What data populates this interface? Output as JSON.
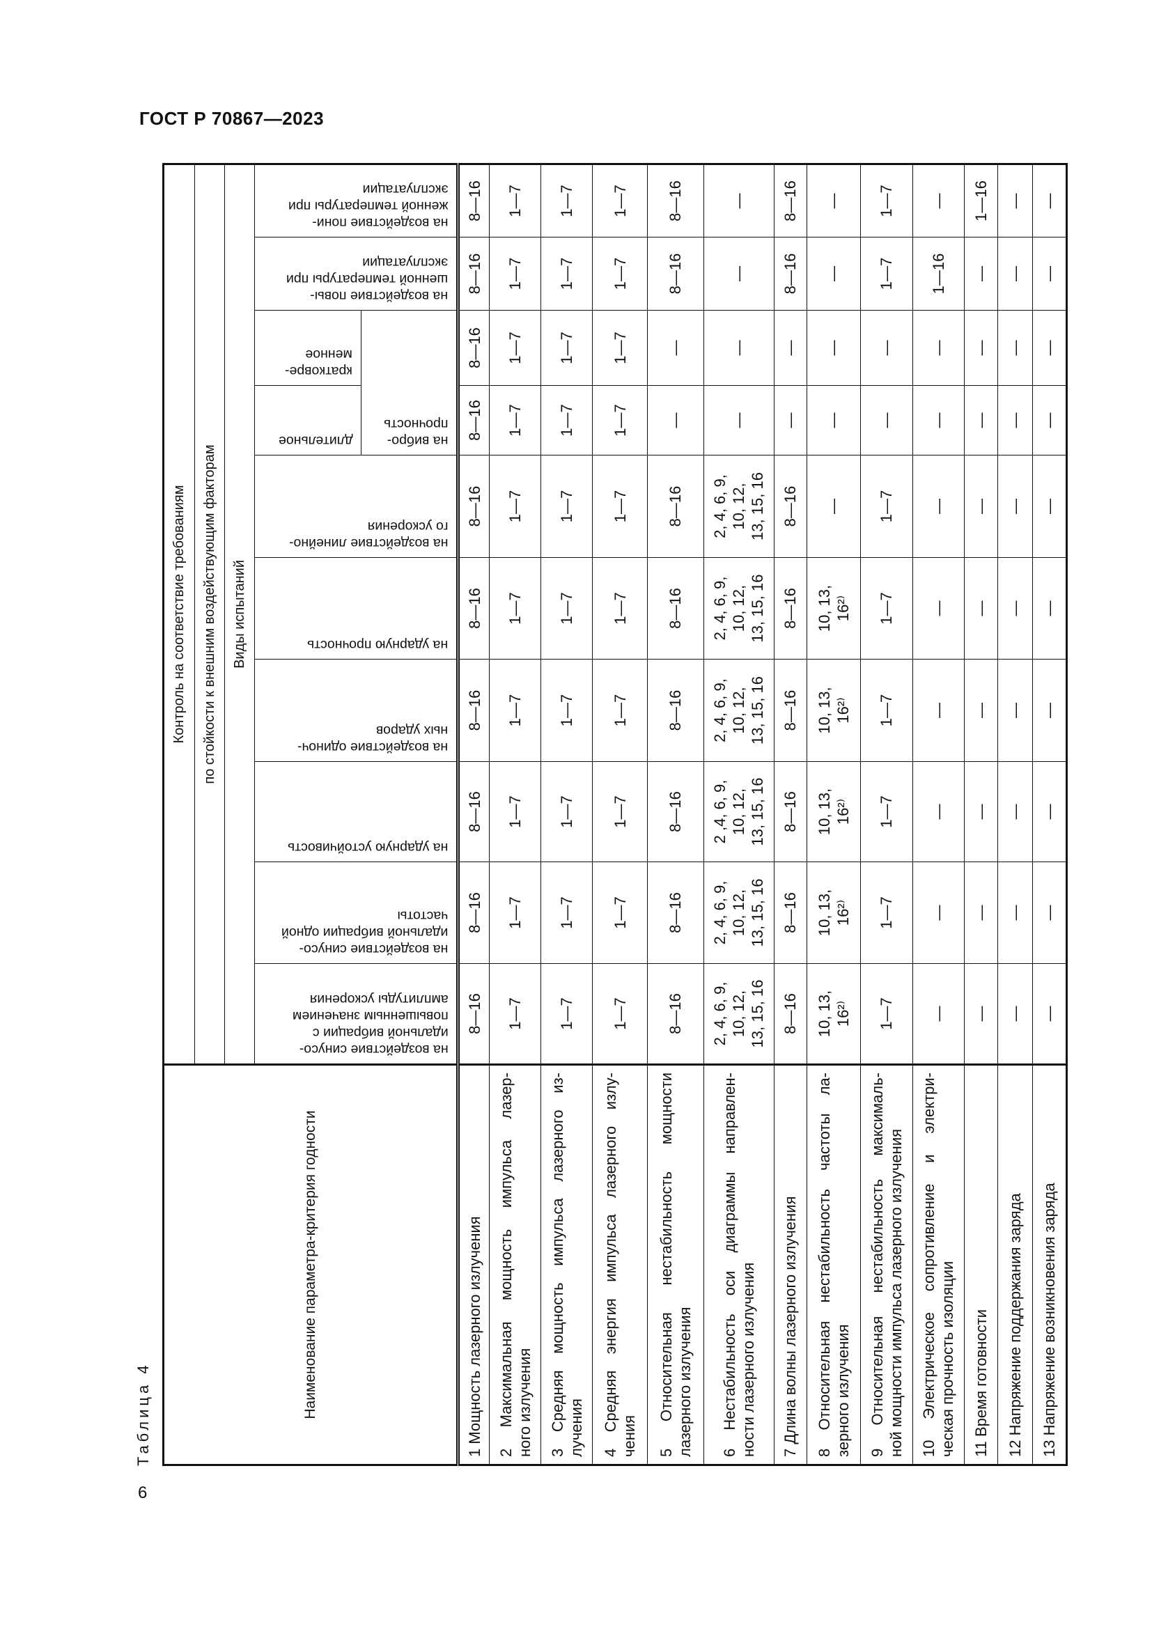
{
  "document": {
    "title": "ГОСТ Р 70867—2023",
    "page_number": "6"
  },
  "table": {
    "caption": "Таблица 4",
    "header": {
      "name_col": "Наименование параметра-критерия годности",
      "control": "Контроль на соответствие требованиям",
      "resistance": "по стойкости к внешним воздействующим факторам",
      "test_types": "Виды испытаний",
      "columns": [
        {
          "lines": [
            "на воздействие синусо-",
            "идальной вибрации с",
            "повышенным значением",
            "амплитуды ускорения"
          ]
        },
        {
          "lines": [
            "на воздействие синусо-",
            "идальной вибрации одной",
            "частоты"
          ]
        },
        {
          "lines": [
            "на ударную устойчивость"
          ]
        },
        {
          "lines": [
            "на воздействие одиноч-",
            "ных ударов"
          ]
        },
        {
          "lines": [
            "на ударную прочность"
          ]
        },
        {
          "lines": [
            "на воздействие линейно-",
            "го ускорения"
          ]
        },
        {
          "lines": [
            "длительное"
          ]
        },
        {
          "lines": [
            "кратковре-",
            "менное"
          ]
        },
        {
          "lines": [
            "на воздействие повы-",
            "шенной температуры при",
            "эксплуатации"
          ]
        },
        {
          "lines": [
            "на воздействие пони-",
            "женной температуры при",
            "эксплуатации"
          ]
        }
      ],
      "vibro": {
        "lines": [
          "на вибро-",
          "прочность"
        ]
      }
    },
    "rows": [
      {
        "name_lines": [
          "1 Мощность лазерного излучения"
        ],
        "values": [
          "8—16",
          "8—16",
          "8—16",
          "8—16",
          "8—16",
          "8—16",
          "8—16",
          "8—16",
          "8—16",
          "8—16"
        ]
      },
      {
        "name_lines": [
          "2 Максимальная мощность импульса лазер-",
          "ного излучения"
        ],
        "values": [
          "1—7",
          "1—7",
          "1—7",
          "1—7",
          "1—7",
          "1—7",
          "1—7",
          "1—7",
          "1—7",
          "1—7"
        ]
      },
      {
        "name_lines": [
          "3 Средняя мощность импульса лазерного из-",
          "лучения"
        ],
        "values": [
          "1—7",
          "1—7",
          "1—7",
          "1—7",
          "1—7",
          "1—7",
          "1—7",
          "1—7",
          "1—7",
          "1—7"
        ]
      },
      {
        "name_lines": [
          "4 Средняя энергия импульса лазерного излу-",
          "чения"
        ],
        "values": [
          "1—7",
          "1—7",
          "1—7",
          "1—7",
          "1—7",
          "1—7",
          "1—7",
          "1—7",
          "1—7",
          "1—7"
        ]
      },
      {
        "name_lines": [
          "5 Относительная нестабильность мощности",
          "лазерного излучения"
        ],
        "values": [
          "8—16",
          "8—16",
          "8—16",
          "8—16",
          "8—16",
          "8—16",
          "—",
          "—",
          "8—16",
          "8—16"
        ]
      },
      {
        "name_lines": [
          "6 Нестабильность оси диаграммы направлен-",
          "ности лазерного излучения"
        ],
        "values": [
          [
            "2, 4, 6, 9,",
            "10, 12,",
            "13, 15, 16"
          ],
          [
            "2, 4, 6, 9,",
            "10, 12,",
            "13, 15, 16"
          ],
          [
            "2 ,4, 6, 9,",
            "10, 12,",
            "13, 15, 16"
          ],
          [
            "2, 4, 6, 9,",
            "10, 12,",
            "13, 15, 16"
          ],
          [
            "2, 4, 6, 9,",
            "10, 12,",
            "13, 15, 16"
          ],
          [
            "2, 4, 6, 9,",
            "10, 12,",
            "13, 15, 16"
          ],
          "—",
          "—",
          "—",
          "—"
        ]
      },
      {
        "name_lines": [
          "7 Длина волны лазерного излучения"
        ],
        "values": [
          "8—16",
          "8—16",
          "8—16",
          "8—16",
          "8—16",
          "8—16",
          "—",
          "—",
          "8—16",
          "8—16"
        ]
      },
      {
        "name_lines": [
          "8 Относительная нестабильность частоты ла-",
          "зерного излучения"
        ],
        "values": [
          [
            "10, 13,",
            "16²⁾"
          ],
          [
            "10, 13,",
            "16²⁾"
          ],
          [
            "10, 13,",
            "16²⁾"
          ],
          [
            "10, 13,",
            "16²⁾"
          ],
          [
            "10, 13,",
            "16²⁾"
          ],
          "—",
          "—",
          "—",
          "—",
          "—"
        ]
      },
      {
        "name_lines": [
          "9 Относительная нестабильность максималь-",
          "ной мощности импульса лазерного излучения"
        ],
        "values": [
          "1—7",
          "1—7",
          "1—7",
          "1—7",
          "1—7",
          "1—7",
          "—",
          "—",
          "1—7",
          "1—7"
        ]
      },
      {
        "name_lines": [
          "10 Электрическое сопротивление и электри-",
          "ческая прочность изоляции"
        ],
        "values": [
          "—",
          "—",
          "—",
          "—",
          "—",
          "—",
          "—",
          "—",
          "1—16",
          "—"
        ]
      },
      {
        "name_lines": [
          "11 Время готовности"
        ],
        "values": [
          "—",
          "—",
          "—",
          "—",
          "—",
          "—",
          "—",
          "—",
          "—",
          "1—16"
        ]
      },
      {
        "name_lines": [
          "12 Напряжение поддержания заряда"
        ],
        "values": [
          "—",
          "—",
          "—",
          "—",
          "—",
          "—",
          "—",
          "—",
          "—",
          "—"
        ]
      },
      {
        "name_lines": [
          "13 Напряжение возникновения заряда"
        ],
        "values": [
          "—",
          "—",
          "—",
          "—",
          "—",
          "—",
          "—",
          "—",
          "—",
          "—"
        ]
      }
    ]
  }
}
